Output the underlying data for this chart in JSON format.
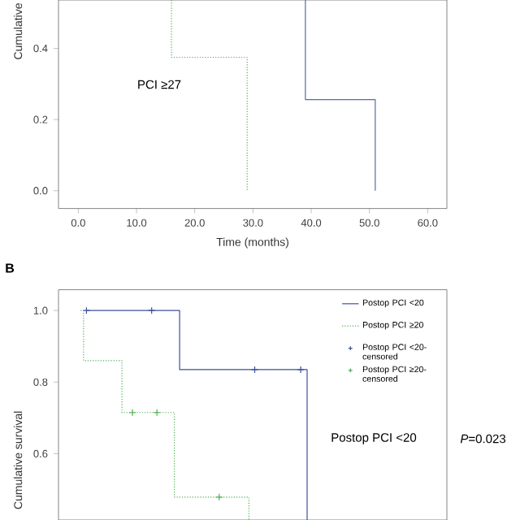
{
  "chart_data": [
    {
      "type": "line",
      "xlabel": "Time (months)",
      "ylabel": "Cumulative",
      "annotations": [
        "PCI ≥27"
      ],
      "xlim": [
        -3.4,
        63.3
      ],
      "xticks": [
        {
          "value": 0,
          "label": "0.0"
        },
        {
          "value": 10,
          "label": "10.0"
        },
        {
          "value": 20,
          "label": "20.0"
        },
        {
          "value": 30,
          "label": "30.0"
        },
        {
          "value": 40,
          "label": "40.0"
        },
        {
          "value": 50,
          "label": "50.0"
        },
        {
          "value": 60,
          "label": "60.0"
        }
      ],
      "ylim": [
        -0.05,
        0.536
      ],
      "yticks": [
        {
          "value": 0,
          "label": "0.0"
        },
        {
          "value": 0.2,
          "label": "0.2"
        },
        {
          "value": 0.4,
          "label": "0.4"
        }
      ],
      "series": [
        {
          "color": "#5a6aa8",
          "line_style": "solid",
          "x": [
            39,
            39,
            51,
            51
          ],
          "values": [
            0.536,
            0.256,
            0.256,
            0
          ]
        },
        {
          "color": "#4caf50",
          "line_style": "dotted",
          "x": [
            16,
            16,
            29,
            29
          ],
          "values": [
            0.536,
            0.375,
            0.375,
            0
          ]
        }
      ]
    },
    {
      "type": "line",
      "ylabel": "Cumulative survival",
      "annotations": [
        "B",
        "Postop PCI <20",
        "*P*=0.023"
      ],
      "xlim": [
        -3.4,
        63.3
      ],
      "ylim": [
        0.415,
        1.058
      ],
      "yticks": [
        {
          "value": 0.6,
          "label": "0.6"
        },
        {
          "value": 0.8,
          "label": "0.8"
        },
        {
          "value": 1.0,
          "label": "1.0"
        }
      ],
      "tick_labels": "y",
      "legend": "top right",
      "series": [
        {
          "name": "Postop PCI <20",
          "type": "step",
          "color": "#3f4fa0",
          "line_style": "solid",
          "x": [
            1.4,
            17.4,
            39.3
          ],
          "values": [
            1,
            0.835,
            0.415
          ]
        },
        {
          "name": "Postop PCI ≥20",
          "type": "step",
          "color": "#4caf50",
          "line_style": "dotted",
          "x": [
            0.4,
            0.9,
            7.5,
            16.5,
            29.3
          ],
          "values": [
            1,
            0.86,
            0.715,
            0.479,
            0.415
          ]
        },
        {
          "name": "Postop PCI <20-censored",
          "type": "scatter",
          "color": "#3f4fa0",
          "x": [
            1.4,
            12.6,
            30.3,
            38.2
          ],
          "values": [
            1,
            1,
            0.835,
            0.835
          ]
        },
        {
          "name": "Postop PCI ≥20-censored",
          "type": "scatter",
          "color": "#4caf50",
          "x": [
            9.3,
            13.5,
            24.2
          ],
          "values": [
            0.715,
            0.715,
            0.479
          ]
        }
      ]
    }
  ]
}
